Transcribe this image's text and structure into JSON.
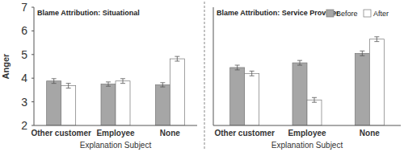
{
  "chart_data": [
    {
      "type": "bar",
      "title": "Blame Attribution: Situational",
      "x_label": "Explanation Subject",
      "y_label": "Anger",
      "categories": [
        "Other customer",
        "Employee",
        "None"
      ],
      "series": [
        {
          "color": "#a6a6a6",
          "values": [
            3.88,
            3.75,
            3.72
          ],
          "errors": [
            0.1,
            0.09,
            0.09
          ]
        },
        {
          "color": "#ffffff",
          "values": [
            3.68,
            3.88,
            4.82
          ],
          "errors": [
            0.1,
            0.1,
            0.1
          ]
        }
      ],
      "ylim": [
        2,
        7
      ],
      "yticks": [
        2,
        3,
        4,
        5,
        6,
        7
      ],
      "grid": false
    },
    {
      "type": "bar",
      "title": "Blame Attribution: Service Provider",
      "x_label": "Explanation Subject",
      "categories": [
        "Other customer",
        "Employee",
        "None"
      ],
      "series": [
        {
          "name": "Before",
          "color": "#a6a6a6",
          "values": [
            4.45,
            4.65,
            5.05
          ],
          "errors": [
            0.1,
            0.1,
            0.1
          ]
        },
        {
          "name": "After",
          "color": "#ffffff",
          "values": [
            4.2,
            3.08,
            5.65
          ],
          "errors": [
            0.1,
            0.1,
            0.1
          ]
        }
      ],
      "ylim": [
        2,
        7
      ],
      "grid": false,
      "legend": "top-right",
      "tick_labels": "x"
    }
  ]
}
